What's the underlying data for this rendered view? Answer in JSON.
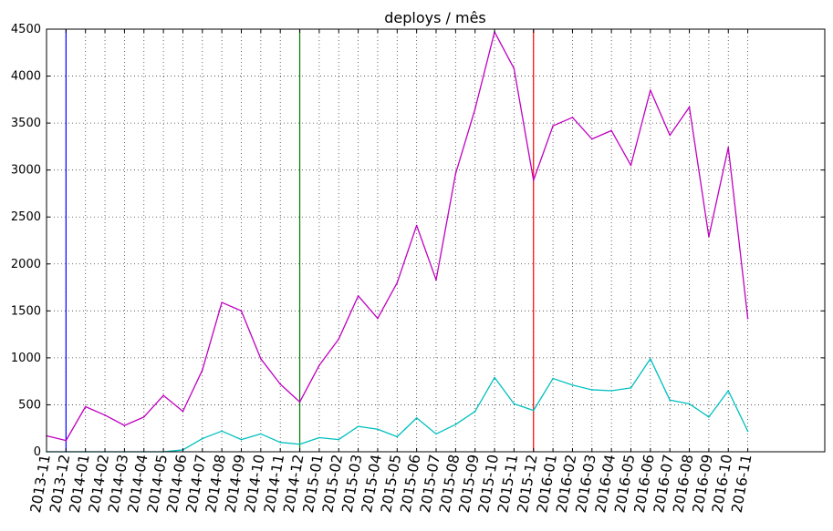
{
  "chart_data": {
    "type": "line",
    "title": "deploys / mês",
    "xlabel": "",
    "ylabel": "",
    "categories": [
      "2013-11",
      "2013-12",
      "2014-01",
      "2014-02",
      "2014-03",
      "2014-04",
      "2014-05",
      "2014-06",
      "2014-07",
      "2014-08",
      "2014-09",
      "2014-10",
      "2014-11",
      "2014-12",
      "2015-01",
      "2015-02",
      "2015-03",
      "2015-04",
      "2015-05",
      "2015-06",
      "2015-07",
      "2015-08",
      "2015-09",
      "2015-10",
      "2015-11",
      "2015-12",
      "2016-01",
      "2016-02",
      "2016-03",
      "2016-04",
      "2016-05",
      "2016-06",
      "2016-07",
      "2016-08",
      "2016-09",
      "2016-10",
      "2016-11"
    ],
    "ylim": [
      0,
      4500
    ],
    "yticks": [
      0,
      500,
      1000,
      1500,
      2000,
      2500,
      3000,
      3500,
      4000,
      4500
    ],
    "grid": true,
    "series": [
      {
        "color": "#bf00bf",
        "values": [
          170,
          120,
          480,
          390,
          280,
          370,
          600,
          430,
          870,
          1590,
          1500,
          990,
          720,
          530,
          920,
          1200,
          1660,
          1420,
          1800,
          2410,
          1830,
          2960,
          3650,
          4470,
          4080,
          2890,
          3470,
          3560,
          3330,
          3420,
          3050,
          3850,
          3370,
          3670,
          2290,
          3240,
          1420
        ]
      },
      {
        "color": "#00bfbf",
        "values": [
          0,
          0,
          0,
          0,
          0,
          0,
          0,
          20,
          140,
          220,
          130,
          190,
          100,
          80,
          150,
          130,
          270,
          240,
          160,
          360,
          190,
          290,
          430,
          790,
          510,
          440,
          780,
          710,
          660,
          650,
          680,
          990,
          550,
          510,
          370,
          650,
          220
        ]
      }
    ],
    "vertical_lines": [
      {
        "at": "2013-12",
        "color": "#0000ff"
      },
      {
        "at": "2014-12",
        "color": "#008000"
      },
      {
        "at": "2015-12",
        "color": "#ff0000"
      }
    ]
  }
}
